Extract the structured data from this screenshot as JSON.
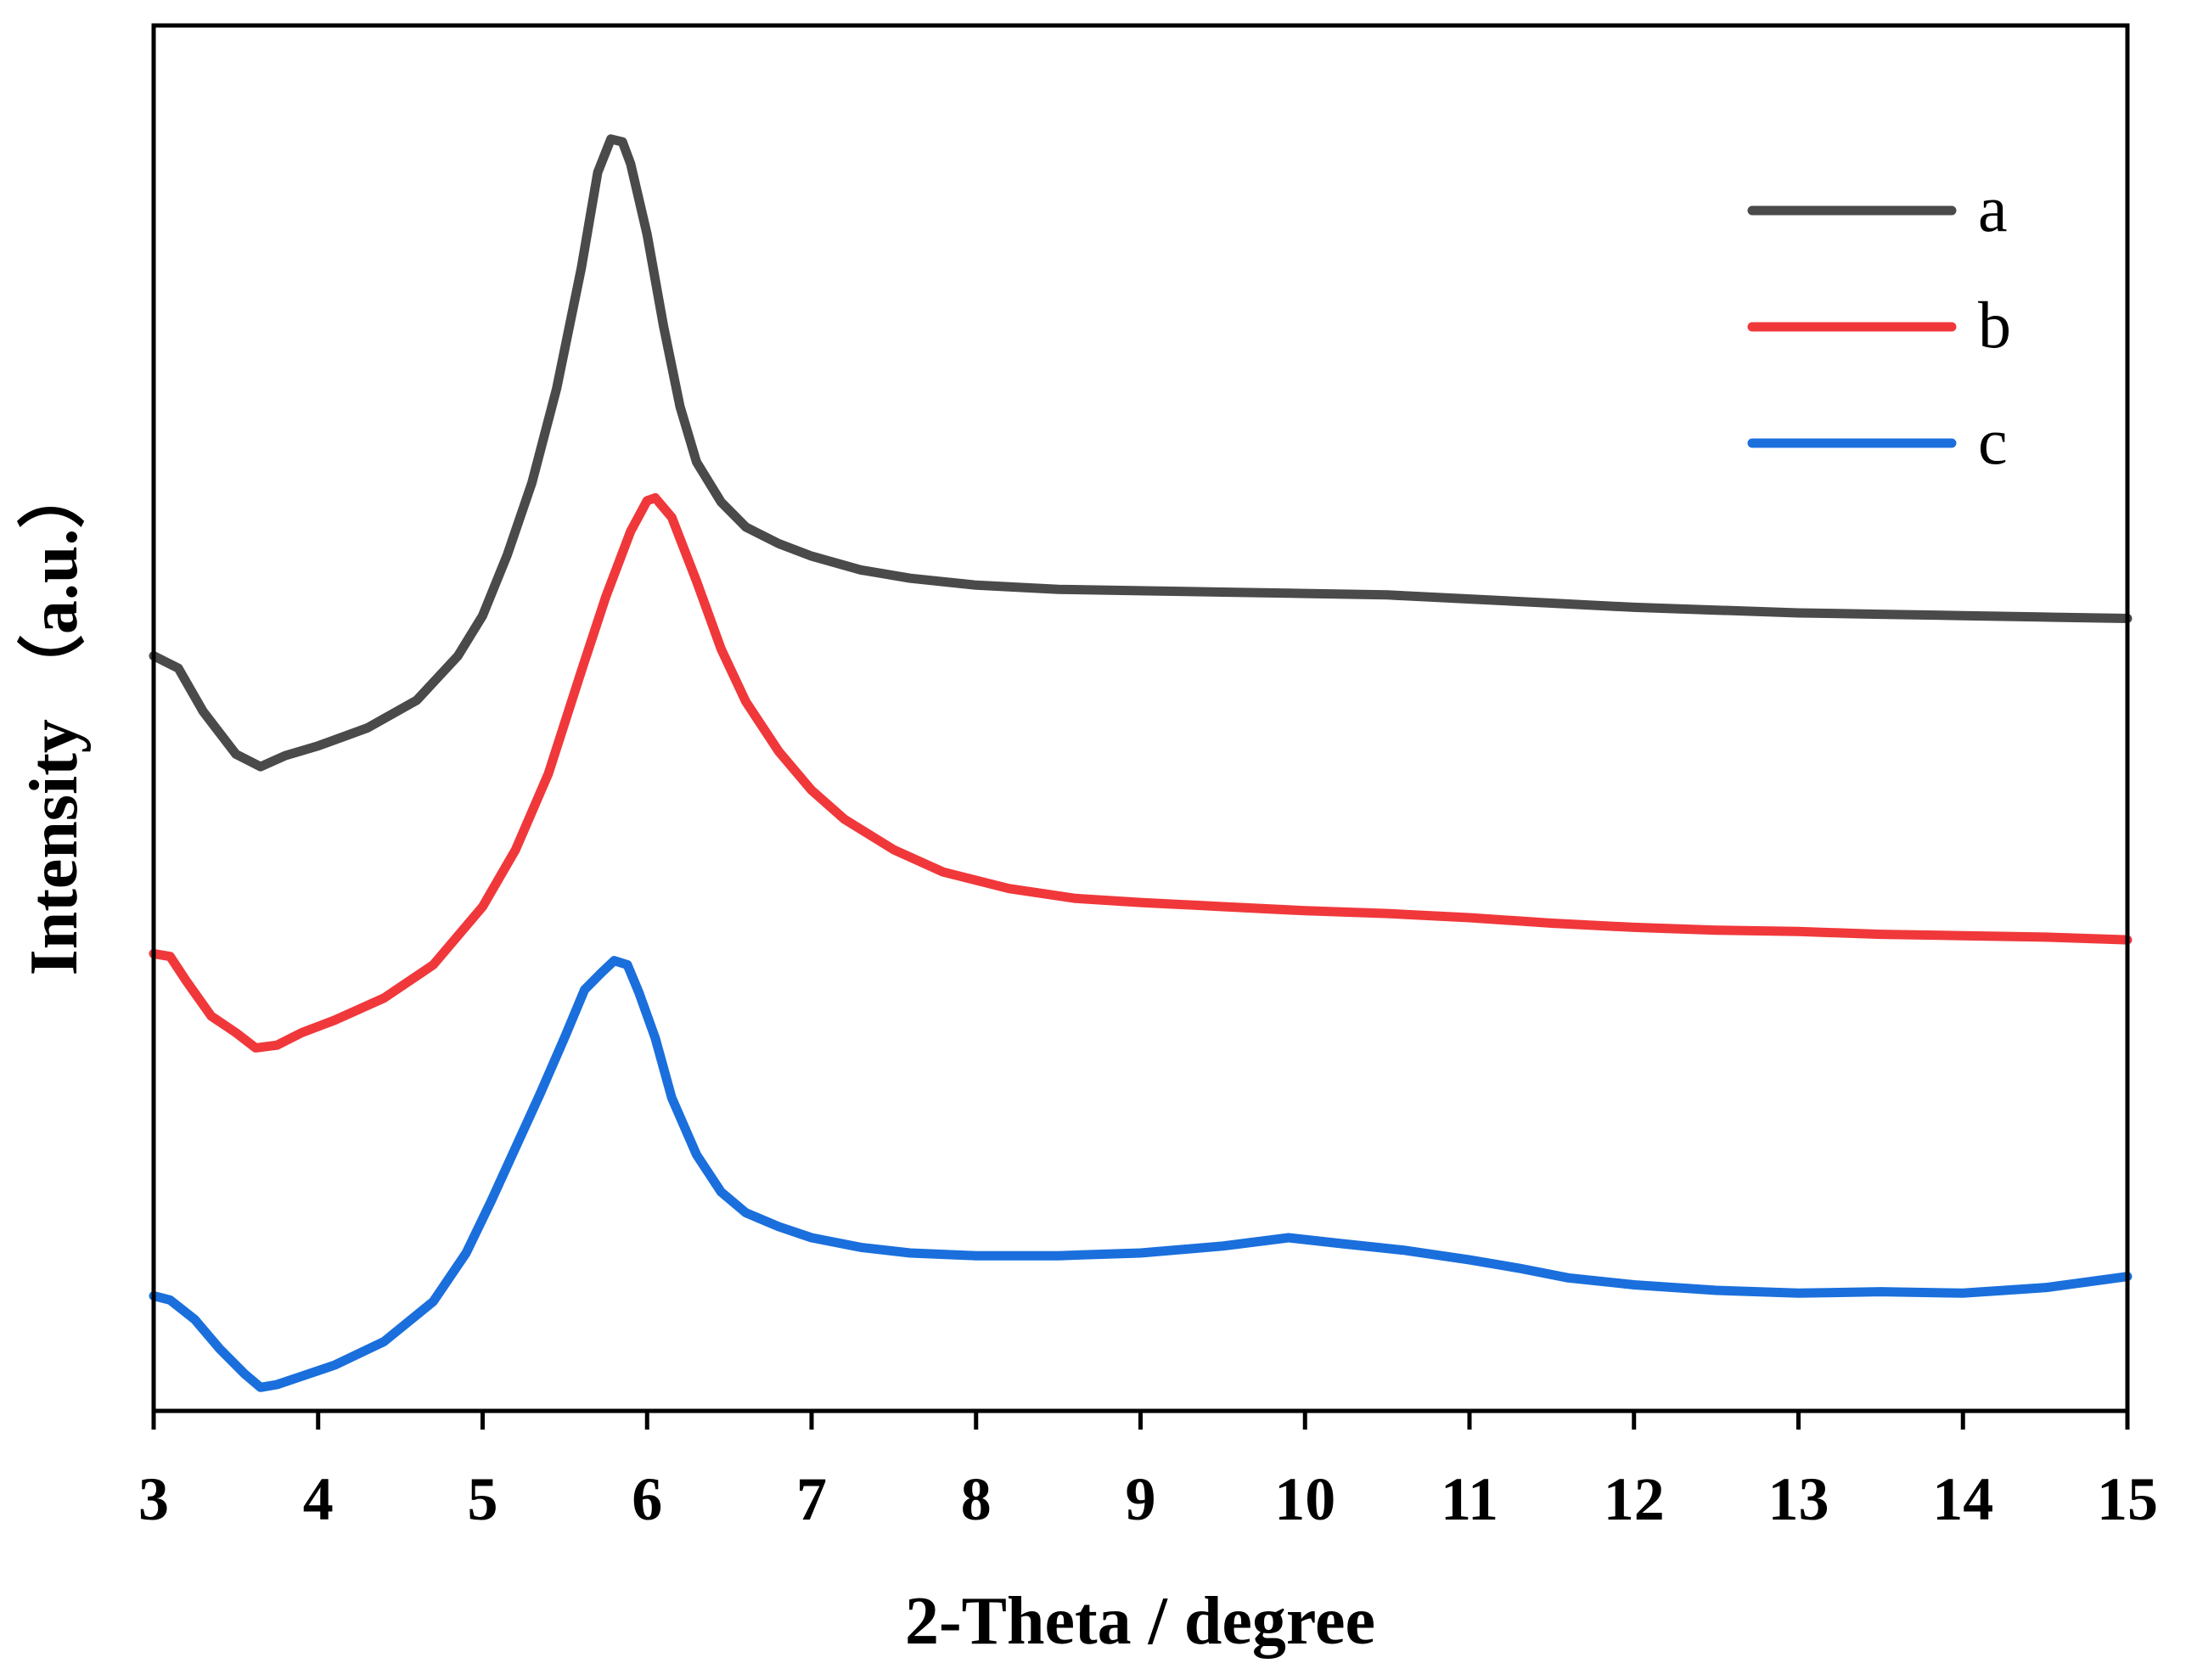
{
  "chart_data": {
    "type": "line",
    "title": "",
    "xlabel": "2-Theta / degree",
    "ylabel": "Intensity （a.u.）",
    "xlim": [
      3,
      15
    ],
    "ylim": [
      0,
      100
    ],
    "x_ticks": [
      "3",
      "4",
      "5",
      "6",
      "7",
      "8",
      "9",
      "10",
      "11",
      "12",
      "13",
      "14",
      "15"
    ],
    "y_ticks_visible": false,
    "grid": false,
    "legend_position": "top-right",
    "series": [
      {
        "name": "a",
        "color": "#4a4a4a",
        "points": [
          [
            3.0,
            54.5
          ],
          [
            3.15,
            53.6
          ],
          [
            3.3,
            50.5
          ],
          [
            3.5,
            47.4
          ],
          [
            3.65,
            46.5
          ],
          [
            3.8,
            47.3
          ],
          [
            4.0,
            48.0
          ],
          [
            4.3,
            49.3
          ],
          [
            4.6,
            51.3
          ],
          [
            4.85,
            54.5
          ],
          [
            5.0,
            57.4
          ],
          [
            5.15,
            61.8
          ],
          [
            5.3,
            67.0
          ],
          [
            5.45,
            73.8
          ],
          [
            5.6,
            82.5
          ],
          [
            5.7,
            89.4
          ],
          [
            5.78,
            91.8
          ],
          [
            5.85,
            91.6
          ],
          [
            5.9,
            90.0
          ],
          [
            6.0,
            84.9
          ],
          [
            6.1,
            78.3
          ],
          [
            6.2,
            72.5
          ],
          [
            6.3,
            68.5
          ],
          [
            6.45,
            65.6
          ],
          [
            6.6,
            63.8
          ],
          [
            6.8,
            62.6
          ],
          [
            7.0,
            61.7
          ],
          [
            7.3,
            60.7
          ],
          [
            7.6,
            60.1
          ],
          [
            8.0,
            59.6
          ],
          [
            8.5,
            59.3
          ],
          [
            9.0,
            59.2
          ],
          [
            9.5,
            59.1
          ],
          [
            10.0,
            59.0
          ],
          [
            10.5,
            58.9
          ],
          [
            11.0,
            58.6
          ],
          [
            11.5,
            58.3
          ],
          [
            12.0,
            58.0
          ],
          [
            12.5,
            57.8
          ],
          [
            13.0,
            57.6
          ],
          [
            13.5,
            57.5
          ],
          [
            14.0,
            57.4
          ],
          [
            14.5,
            57.3
          ],
          [
            15.0,
            57.2
          ]
        ]
      },
      {
        "name": "b",
        "color": "#f0383b",
        "points": [
          [
            3.0,
            33.0
          ],
          [
            3.1,
            32.8
          ],
          [
            3.2,
            31.0
          ],
          [
            3.35,
            28.5
          ],
          [
            3.5,
            27.3
          ],
          [
            3.62,
            26.2
          ],
          [
            3.75,
            26.4
          ],
          [
            3.9,
            27.3
          ],
          [
            4.1,
            28.2
          ],
          [
            4.4,
            29.8
          ],
          [
            4.7,
            32.2
          ],
          [
            5.0,
            36.4
          ],
          [
            5.2,
            40.5
          ],
          [
            5.4,
            46.0
          ],
          [
            5.6,
            53.4
          ],
          [
            5.75,
            58.8
          ],
          [
            5.9,
            63.5
          ],
          [
            6.0,
            65.7
          ],
          [
            6.05,
            65.9
          ],
          [
            6.15,
            64.5
          ],
          [
            6.3,
            59.9
          ],
          [
            6.45,
            55.0
          ],
          [
            6.6,
            51.2
          ],
          [
            6.8,
            47.6
          ],
          [
            7.0,
            44.8
          ],
          [
            7.2,
            42.7
          ],
          [
            7.5,
            40.5
          ],
          [
            7.8,
            38.9
          ],
          [
            8.2,
            37.7
          ],
          [
            8.6,
            37.0
          ],
          [
            9.0,
            36.7
          ],
          [
            9.5,
            36.4
          ],
          [
            10.0,
            36.1
          ],
          [
            10.5,
            35.9
          ],
          [
            11.0,
            35.6
          ],
          [
            11.5,
            35.2
          ],
          [
            12.0,
            34.9
          ],
          [
            12.5,
            34.7
          ],
          [
            13.0,
            34.6
          ],
          [
            13.5,
            34.4
          ],
          [
            14.0,
            34.3
          ],
          [
            14.5,
            34.2
          ],
          [
            15.0,
            34.0
          ]
        ]
      },
      {
        "name": "c",
        "color": "#1a6fdc",
        "points": [
          [
            3.0,
            8.3
          ],
          [
            3.1,
            8.0
          ],
          [
            3.25,
            6.6
          ],
          [
            3.4,
            4.5
          ],
          [
            3.55,
            2.7
          ],
          [
            3.65,
            1.7
          ],
          [
            3.75,
            1.9
          ],
          [
            3.9,
            2.5
          ],
          [
            4.1,
            3.3
          ],
          [
            4.4,
            5.0
          ],
          [
            4.7,
            7.9
          ],
          [
            4.9,
            11.4
          ],
          [
            5.05,
            15.1
          ],
          [
            5.2,
            19.0
          ],
          [
            5.35,
            22.9
          ],
          [
            5.5,
            27.0
          ],
          [
            5.62,
            30.4
          ],
          [
            5.72,
            31.6
          ],
          [
            5.8,
            32.5
          ],
          [
            5.88,
            32.2
          ],
          [
            5.95,
            30.2
          ],
          [
            6.05,
            26.9
          ],
          [
            6.15,
            22.6
          ],
          [
            6.3,
            18.5
          ],
          [
            6.45,
            15.8
          ],
          [
            6.6,
            14.3
          ],
          [
            6.8,
            13.3
          ],
          [
            7.0,
            12.5
          ],
          [
            7.3,
            11.8
          ],
          [
            7.6,
            11.4
          ],
          [
            8.0,
            11.2
          ],
          [
            8.5,
            11.2
          ],
          [
            9.0,
            11.4
          ],
          [
            9.5,
            11.9
          ],
          [
            9.9,
            12.5
          ],
          [
            10.2,
            12.1
          ],
          [
            10.6,
            11.6
          ],
          [
            11.0,
            10.9
          ],
          [
            11.3,
            10.3
          ],
          [
            11.6,
            9.6
          ],
          [
            12.0,
            9.1
          ],
          [
            12.5,
            8.7
          ],
          [
            13.0,
            8.5
          ],
          [
            13.5,
            8.6
          ],
          [
            14.0,
            8.5
          ],
          [
            14.5,
            8.9
          ],
          [
            15.0,
            9.7
          ]
        ]
      }
    ]
  }
}
